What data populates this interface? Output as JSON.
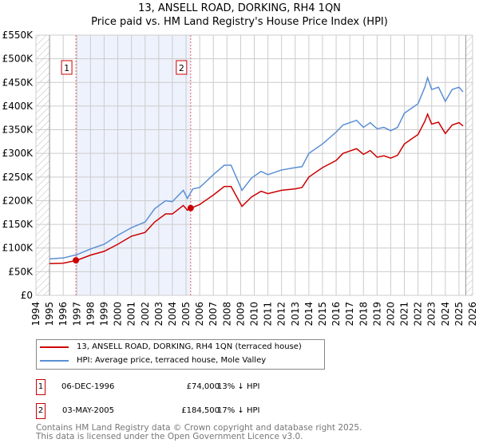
{
  "title": "13, ANSELL ROAD, DORKING, RH4 1QN",
  "subtitle": "Price paid vs. HM Land Registry's House Price Index (HPI)",
  "chart_data": {
    "type": "line",
    "title": "13, ANSELL ROAD, DORKING, RH4 1QN",
    "subtitle": "Price paid vs. HM Land Registry's House Price Index (HPI)",
    "xlim": [
      1994,
      2026
    ],
    "ylim": [
      0,
      550000
    ],
    "x_ticks": [
      "1994",
      "1995",
      "1996",
      "1997",
      "1998",
      "1999",
      "2000",
      "2001",
      "2002",
      "2003",
      "2004",
      "2005",
      "2006",
      "2007",
      "2008",
      "2009",
      "2010",
      "2011",
      "2012",
      "2013",
      "2014",
      "2015",
      "2016",
      "2017",
      "2018",
      "2019",
      "2020",
      "2021",
      "2022",
      "2023",
      "2024",
      "2025",
      "2026"
    ],
    "y_ticks": [
      "£0",
      "£50K",
      "£100K",
      "£150K",
      "£200K",
      "£250K",
      "£300K",
      "£350K",
      "£400K",
      "£450K",
      "£500K",
      "£550K"
    ],
    "grid": true,
    "x": [
      1995,
      1996,
      1997,
      1998,
      1999,
      2000,
      2001,
      2002,
      2002.7,
      2003.5,
      2004,
      2004.8,
      2005.1,
      2005.5,
      2006,
      2007,
      2007.8,
      2008.3,
      2009.1,
      2009.8,
      2010.5,
      2011,
      2012,
      2013,
      2013.5,
      2014,
      2015,
      2016,
      2016.5,
      2017,
      2017.5,
      2018,
      2018.5,
      2019,
      2019.5,
      2020,
      2020.5,
      2021,
      2021.5,
      2022,
      2022.5,
      2022.7,
      2023,
      2023.5,
      2024,
      2024.5,
      2025,
      2025.3
    ],
    "series": [
      {
        "name": "13, ANSELL ROAD, DORKING, RH4 1QN (terraced house)",
        "color": "#cc0000",
        "values": [
          67000,
          68000,
          74000,
          85000,
          93000,
          108000,
          125000,
          133000,
          155000,
          172000,
          172000,
          190000,
          180000,
          186000,
          192000,
          212000,
          230000,
          230000,
          188000,
          208000,
          220000,
          215000,
          222000,
          225000,
          228000,
          250000,
          270000,
          285000,
          300000,
          305000,
          310000,
          298000,
          306000,
          292000,
          295000,
          290000,
          296000,
          320000,
          330000,
          340000,
          368000,
          383000,
          362000,
          366000,
          342000,
          360000,
          365000,
          358000
        ]
      },
      {
        "name": "HPI: Average price, terraced house, Mole Valley",
        "color": "#5b8fd4",
        "values": [
          77000,
          79000,
          86000,
          98000,
          108000,
          127000,
          143000,
          155000,
          183000,
          200000,
          198000,
          222000,
          205000,
          225000,
          228000,
          255000,
          275000,
          275000,
          222000,
          248000,
          262000,
          255000,
          265000,
          270000,
          272000,
          300000,
          320000,
          345000,
          360000,
          365000,
          370000,
          355000,
          365000,
          352000,
          355000,
          348000,
          355000,
          385000,
          395000,
          405000,
          440000,
          460000,
          435000,
          440000,
          410000,
          435000,
          440000,
          430000
        ]
      }
    ],
    "sales": [
      {
        "label": "1",
        "x": 1996.93,
        "value": 74000
      },
      {
        "label": "2",
        "x": 2005.34,
        "value": 184500
      }
    ],
    "legend": "bottom"
  },
  "legend": [
    "13, ANSELL ROAD, DORKING, RH4 1QN (terraced house)",
    "HPI: Average price, terraced house, Mole Valley"
  ],
  "table": [
    {
      "num": "1",
      "date": "06-DEC-1996",
      "price": "£74,000",
      "hpi": "13% ↓ HPI"
    },
    {
      "num": "2",
      "date": "03-MAY-2005",
      "price": "£184,500",
      "hpi": "17% ↓ HPI"
    }
  ],
  "footer": [
    "Contains HM Land Registry data © Crown copyright and database right 2025.",
    "This data is licensed under the Open Government Licence v3.0."
  ]
}
